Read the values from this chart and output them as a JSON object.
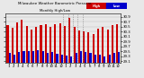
{
  "title": "Milwaukee Weather Barometric Pressure",
  "subtitle": "Monthly High/Low",
  "ylim": [
    29.05,
    31.05
  ],
  "background_color": "#e8e8e8",
  "bar_width": 0.4,
  "categories": [
    "'1",
    "'2",
    "'3",
    "'4",
    "'5",
    "'6",
    "'7",
    "'8",
    "'9",
    "'10",
    "'11",
    "'12",
    "'1",
    "'2",
    "'3",
    "'4",
    "'5",
    "'6",
    "'7",
    "'8",
    "'9",
    "'10",
    "'11",
    "'12"
  ],
  "x_labels": [
    "1",
    "2",
    "3",
    "4",
    "5",
    "6",
    "7",
    "8",
    "9",
    "10",
    "11",
    "12",
    "1",
    "2",
    "3",
    "4",
    "5",
    "6",
    "7",
    "8",
    "9",
    "10",
    "11",
    "12"
  ],
  "high_values": [
    30.55,
    30.45,
    30.68,
    30.78,
    30.52,
    30.38,
    30.5,
    30.55,
    30.6,
    30.5,
    30.62,
    30.65,
    30.52,
    30.85,
    30.48,
    30.35,
    30.3,
    30.28,
    30.22,
    30.42,
    30.48,
    30.4,
    30.55,
    30.62
  ],
  "low_values": [
    29.42,
    29.35,
    29.48,
    29.5,
    29.52,
    29.5,
    29.55,
    29.52,
    29.45,
    29.48,
    29.4,
    29.38,
    29.32,
    29.28,
    29.42,
    29.52,
    29.46,
    29.42,
    29.35,
    29.38,
    29.3,
    29.38,
    29.45,
    29.48
  ],
  "high_color": "#cc0000",
  "low_color": "#0000cc",
  "legend_high_label": "High",
  "legend_low_label": "Low",
  "dotted_cols": [
    12,
    13,
    14,
    15,
    16
  ],
  "yticks": [
    29.1,
    29.3,
    29.5,
    29.7,
    29.9,
    30.1,
    30.3,
    30.5,
    30.7,
    30.9
  ],
  "title_fontsize": 4.5,
  "tick_fontsize": 2.8
}
